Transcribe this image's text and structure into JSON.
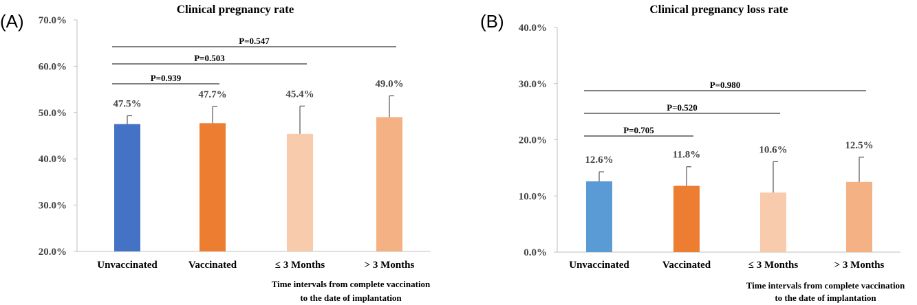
{
  "chart_data": [
    {
      "panel": "(A)",
      "type": "bar",
      "title": "Clinical pregnancy rate",
      "xlabel": "Time intervals from complete vaccination to the date of implantation",
      "ylabel": "",
      "ylim": [
        20,
        70
      ],
      "yticks": [
        "20.0%",
        "30.0%",
        "40.0%",
        "50.0%",
        "60.0%",
        "70.0%"
      ],
      "categories": [
        "Unvaccinated",
        "Vaccinated",
        "≤ 3 Months",
        "> 3 Months"
      ],
      "values": [
        47.5,
        47.7,
        45.4,
        49.0
      ],
      "errors": [
        1.8,
        3.6,
        6.0,
        4.6
      ],
      "labels": [
        "47.5%",
        "47.7%",
        "45.4%",
        "49.0%"
      ],
      "colors": [
        "#4472C4",
        "#ED7D31",
        "#F8CBAD",
        "#F4B183"
      ],
      "grid": false,
      "comparisons": [
        {
          "from": 0,
          "to": 1,
          "label": "P=0.939"
        },
        {
          "from": 0,
          "to": 2,
          "label": "P=0.503"
        },
        {
          "from": 0,
          "to": 3,
          "label": "P=0.547"
        }
      ]
    },
    {
      "panel": "(B)",
      "type": "bar",
      "title": "Clinical pregnancy loss rate",
      "xlabel": "Time intervals from complete vaccination to the date of implantation",
      "ylabel": "",
      "ylim": [
        0,
        40
      ],
      "yticks": [
        "0.0%",
        "10.0%",
        "20.0%",
        "30.0%",
        "40.0%"
      ],
      "categories": [
        "Unvaccinated",
        "Vaccinated",
        "≤ 3 Months",
        "> 3 Months"
      ],
      "values": [
        12.6,
        11.8,
        10.6,
        12.5
      ],
      "errors": [
        1.7,
        3.4,
        5.5,
        4.4
      ],
      "labels": [
        "12.6%",
        "11.8%",
        "10.6%",
        "12.5%"
      ],
      "colors": [
        "#5B9BD5",
        "#ED7D31",
        "#F8CBAD",
        "#F4B183"
      ],
      "grid": false,
      "comparisons": [
        {
          "from": 0,
          "to": 1,
          "label": "P=0.705"
        },
        {
          "from": 0,
          "to": 2,
          "label": "P=0.520"
        },
        {
          "from": 0,
          "to": 3,
          "label": "P=0.980"
        }
      ]
    }
  ]
}
